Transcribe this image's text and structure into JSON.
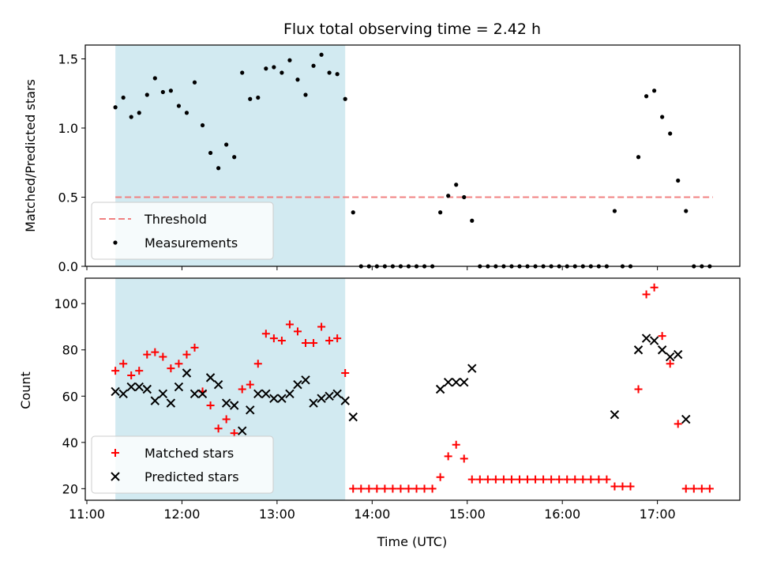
{
  "chart_data": {
    "title": "Flux total observing time = 2.42 h",
    "xlabel": "Time (UTC)",
    "x_unit": "hours UTC",
    "xlim": [
      "10:59",
      "17:52"
    ],
    "x_ticks": [
      {
        "value": "11:00",
        "label": "11:00"
      },
      {
        "value": "12:00",
        "label": "12:00"
      },
      {
        "value": "13:00",
        "label": "13:00"
      },
      {
        "value": "14:00",
        "label": "14:00"
      },
      {
        "value": "15:00",
        "label": "15:00"
      },
      {
        "value": "16:00",
        "label": "16:00"
      },
      {
        "value": "17:00",
        "label": "17:00"
      }
    ],
    "shaded_region": {
      "x_start": "11:18",
      "x_end": "13:43",
      "color": "#add8e6"
    },
    "colors": {
      "threshold": "#f08080",
      "measurements": "#000000",
      "matched": "#ff0000",
      "predicted": "#000000"
    },
    "panels": [
      {
        "type": "scatter",
        "ylabel": "Matched/Predicted stars",
        "ylim": [
          0,
          1.6
        ],
        "y_ticks": [
          "0.0",
          "0.5",
          "1.0",
          "1.5"
        ],
        "legend_position": "lower-left",
        "lines": [
          {
            "name": "Threshold",
            "style": "dashed",
            "y": 0.5,
            "x_start": "11:18",
            "x_end": "17:35"
          }
        ],
        "series": [
          {
            "name": "Measurements",
            "marker": "dot",
            "points": [
              [
                "11:18",
                1.15
              ],
              [
                "11:23",
                1.22
              ],
              [
                "11:28",
                1.08
              ],
              [
                "11:33",
                1.11
              ],
              [
                "11:38",
                1.24
              ],
              [
                "11:43",
                1.36
              ],
              [
                "11:48",
                1.26
              ],
              [
                "11:53",
                1.27
              ],
              [
                "11:58",
                1.16
              ],
              [
                "12:03",
                1.11
              ],
              [
                "12:08",
                1.33
              ],
              [
                "12:13",
                1.02
              ],
              [
                "12:18",
                0.82
              ],
              [
                "12:23",
                0.71
              ],
              [
                "12:28",
                0.88
              ],
              [
                "12:33",
                0.79
              ],
              [
                "12:38",
                1.4
              ],
              [
                "12:43",
                1.21
              ],
              [
                "12:48",
                1.22
              ],
              [
                "12:53",
                1.43
              ],
              [
                "12:58",
                1.44
              ],
              [
                "13:03",
                1.4
              ],
              [
                "13:08",
                1.49
              ],
              [
                "13:13",
                1.35
              ],
              [
                "13:18",
                1.24
              ],
              [
                "13:23",
                1.45
              ],
              [
                "13:28",
                1.53
              ],
              [
                "13:33",
                1.4
              ],
              [
                "13:38",
                1.39
              ],
              [
                "13:43",
                1.21
              ],
              [
                "13:48",
                0.39
              ],
              [
                "13:53",
                0
              ],
              [
                "13:58",
                0
              ],
              [
                "14:03",
                0
              ],
              [
                "14:08",
                0
              ],
              [
                "14:13",
                0
              ],
              [
                "14:18",
                0
              ],
              [
                "14:23",
                0
              ],
              [
                "14:28",
                0
              ],
              [
                "14:33",
                0
              ],
              [
                "14:38",
                0
              ],
              [
                "14:43",
                0.39
              ],
              [
                "14:48",
                0.51
              ],
              [
                "14:53",
                0.59
              ],
              [
                "14:58",
                0.5
              ],
              [
                "15:03",
                0.33
              ],
              [
                "15:08",
                0
              ],
              [
                "15:13",
                0
              ],
              [
                "15:18",
                0
              ],
              [
                "15:23",
                0
              ],
              [
                "15:28",
                0
              ],
              [
                "15:33",
                0
              ],
              [
                "15:38",
                0
              ],
              [
                "15:43",
                0
              ],
              [
                "15:48",
                0
              ],
              [
                "15:53",
                0
              ],
              [
                "15:58",
                0
              ],
              [
                "16:03",
                0
              ],
              [
                "16:08",
                0
              ],
              [
                "16:13",
                0
              ],
              [
                "16:18",
                0
              ],
              [
                "16:23",
                0
              ],
              [
                "16:28",
                0
              ],
              [
                "16:33",
                0.4
              ],
              [
                "16:38",
                0
              ],
              [
                "16:43",
                0
              ],
              [
                "16:48",
                0.79
              ],
              [
                "16:53",
                1.23
              ],
              [
                "16:58",
                1.27
              ],
              [
                "17:03",
                1.08
              ],
              [
                "17:08",
                0.96
              ],
              [
                "17:13",
                0.62
              ],
              [
                "17:18",
                0.4
              ],
              [
                "17:23",
                0
              ],
              [
                "17:28",
                0
              ],
              [
                "17:33",
                0
              ]
            ]
          }
        ]
      },
      {
        "type": "scatter",
        "ylabel": "Count",
        "ylim": [
          15,
          111
        ],
        "y_ticks": [
          "20",
          "40",
          "60",
          "80",
          "100"
        ],
        "legend_position": "lower-left",
        "series": [
          {
            "name": "Matched stars",
            "marker": "plus",
            "points": [
              [
                "11:18",
                71
              ],
              [
                "11:23",
                74
              ],
              [
                "11:28",
                69
              ],
              [
                "11:33",
                71
              ],
              [
                "11:38",
                78
              ],
              [
                "11:43",
                79
              ],
              [
                "11:48",
                77
              ],
              [
                "11:53",
                72
              ],
              [
                "11:58",
                74
              ],
              [
                "12:03",
                78
              ],
              [
                "12:08",
                81
              ],
              [
                "12:13",
                62
              ],
              [
                "12:18",
                56
              ],
              [
                "12:23",
                46
              ],
              [
                "12:28",
                50
              ],
              [
                "12:33",
                44
              ],
              [
                "12:38",
                63
              ],
              [
                "12:43",
                65
              ],
              [
                "12:48",
                74
              ],
              [
                "12:53",
                87
              ],
              [
                "12:58",
                85
              ],
              [
                "13:03",
                84
              ],
              [
                "13:08",
                91
              ],
              [
                "13:13",
                88
              ],
              [
                "13:18",
                83
              ],
              [
                "13:23",
                83
              ],
              [
                "13:28",
                90
              ],
              [
                "13:33",
                84
              ],
              [
                "13:38",
                85
              ],
              [
                "13:43",
                70
              ],
              [
                "13:48",
                20
              ],
              [
                "13:53",
                20
              ],
              [
                "13:58",
                20
              ],
              [
                "14:03",
                20
              ],
              [
                "14:08",
                20
              ],
              [
                "14:13",
                20
              ],
              [
                "14:18",
                20
              ],
              [
                "14:23",
                20
              ],
              [
                "14:28",
                20
              ],
              [
                "14:33",
                20
              ],
              [
                "14:38",
                20
              ],
              [
                "14:43",
                25
              ],
              [
                "14:48",
                34
              ],
              [
                "14:53",
                39
              ],
              [
                "14:58",
                33
              ],
              [
                "15:03",
                24
              ],
              [
                "15:08",
                24
              ],
              [
                "15:13",
                24
              ],
              [
                "15:18",
                24
              ],
              [
                "15:23",
                24
              ],
              [
                "15:28",
                24
              ],
              [
                "15:33",
                24
              ],
              [
                "15:38",
                24
              ],
              [
                "15:43",
                24
              ],
              [
                "15:48",
                24
              ],
              [
                "15:53",
                24
              ],
              [
                "15:58",
                24
              ],
              [
                "16:03",
                24
              ],
              [
                "16:08",
                24
              ],
              [
                "16:13",
                24
              ],
              [
                "16:18",
                24
              ],
              [
                "16:23",
                24
              ],
              [
                "16:28",
                24
              ],
              [
                "16:33",
                21
              ],
              [
                "16:38",
                21
              ],
              [
                "16:43",
                21
              ],
              [
                "16:48",
                63
              ],
              [
                "16:53",
                104
              ],
              [
                "16:58",
                107
              ],
              [
                "17:03",
                86
              ],
              [
                "17:08",
                74
              ],
              [
                "17:13",
                48
              ],
              [
                "17:18",
                20
              ],
              [
                "17:23",
                20
              ],
              [
                "17:28",
                20
              ],
              [
                "17:33",
                20
              ]
            ]
          },
          {
            "name": "Predicted stars",
            "marker": "x",
            "points": [
              [
                "11:18",
                62
              ],
              [
                "11:23",
                61
              ],
              [
                "11:28",
                64
              ],
              [
                "11:33",
                64
              ],
              [
                "11:38",
                63
              ],
              [
                "11:43",
                58
              ],
              [
                "11:48",
                61
              ],
              [
                "11:53",
                57
              ],
              [
                "11:58",
                64
              ],
              [
                "12:03",
                70
              ],
              [
                "12:08",
                61
              ],
              [
                "12:13",
                61
              ],
              [
                "12:18",
                68
              ],
              [
                "12:23",
                65
              ],
              [
                "12:28",
                57
              ],
              [
                "12:33",
                56
              ],
              [
                "12:38",
                45
              ],
              [
                "12:43",
                54
              ],
              [
                "12:48",
                61
              ],
              [
                "12:53",
                61
              ],
              [
                "12:58",
                59
              ],
              [
                "13:03",
                59
              ],
              [
                "13:08",
                61
              ],
              [
                "13:13",
                65
              ],
              [
                "13:18",
                67
              ],
              [
                "13:23",
                57
              ],
              [
                "13:28",
                59
              ],
              [
                "13:33",
                60
              ],
              [
                "13:38",
                61
              ],
              [
                "13:43",
                58
              ],
              [
                "13:48",
                51
              ],
              [
                "14:43",
                63
              ],
              [
                "14:48",
                66
              ],
              [
                "14:53",
                66
              ],
              [
                "14:58",
                66
              ],
              [
                "15:03",
                72
              ],
              [
                "16:33",
                52
              ],
              [
                "16:48",
                80
              ],
              [
                "16:53",
                85
              ],
              [
                "16:58",
                84
              ],
              [
                "17:03",
                80
              ],
              [
                "17:08",
                77
              ],
              [
                "17:13",
                78
              ],
              [
                "17:18",
                50
              ]
            ]
          }
        ]
      }
    ]
  }
}
